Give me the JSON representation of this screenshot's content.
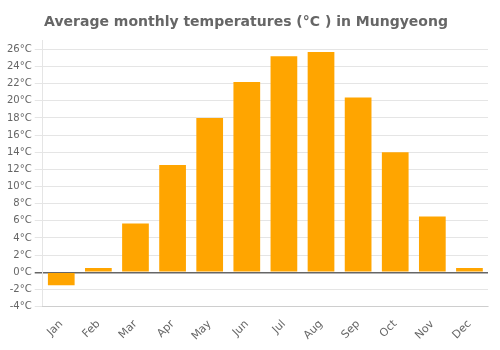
{
  "chart_data": {
    "type": "bar",
    "title": "Average monthly temperatures (°C ) in Mungyeong",
    "categories": [
      "Jan",
      "Feb",
      "Mar",
      "Apr",
      "May",
      "Jun",
      "Jul",
      "Aug",
      "Sep",
      "Oct",
      "Nov",
      "Dec"
    ],
    "values": [
      -1.5,
      0.5,
      5.7,
      12.5,
      18.0,
      22.2,
      25.2,
      25.7,
      20.4,
      14.0,
      6.5,
      0.5
    ],
    "color": "#FFA500",
    "ylim": [
      -4,
      27
    ],
    "yticks": [
      {
        "value": -4,
        "label": "-4°C"
      },
      {
        "value": -2,
        "label": "-2°C"
      },
      {
        "value": 0,
        "label": "0°C"
      },
      {
        "value": 2,
        "label": "2°C"
      },
      {
        "value": 4,
        "label": "4°C"
      },
      {
        "value": 6,
        "label": "6°C"
      },
      {
        "value": 8,
        "label": "8°C"
      },
      {
        "value": 10,
        "label": "10°C"
      },
      {
        "value": 12,
        "label": "12°C"
      },
      {
        "value": 14,
        "label": "14°C"
      },
      {
        "value": 16,
        "label": "16°C"
      },
      {
        "value": 18,
        "label": "18°C"
      },
      {
        "value": 20,
        "label": "20°C"
      },
      {
        "value": 22,
        "label": "22°C"
      },
      {
        "value": 24,
        "label": "24°C"
      },
      {
        "value": 26,
        "label": "26°C"
      }
    ],
    "grid": true
  }
}
